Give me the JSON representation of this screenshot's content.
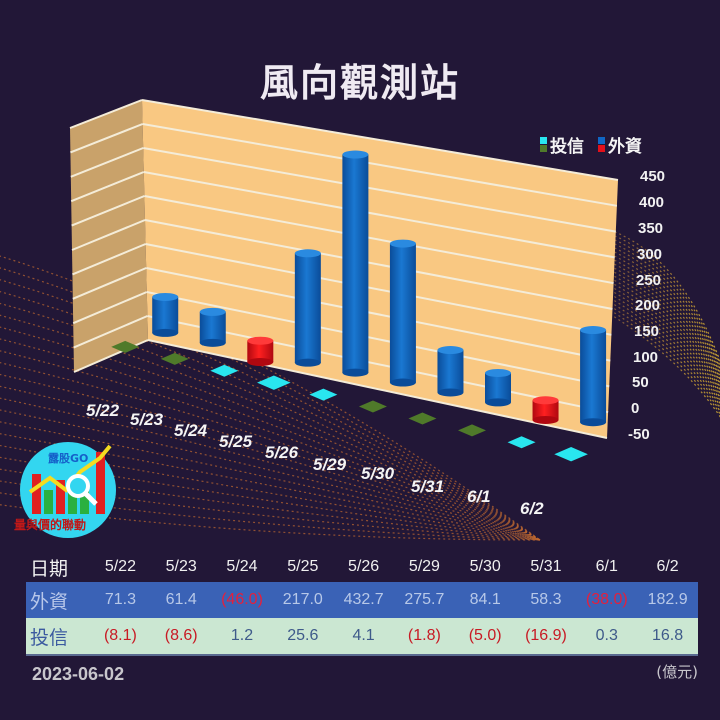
{
  "title": "風向觀測站",
  "legend": {
    "items": [
      {
        "label": "投信",
        "pos_color": "#29e6ef",
        "neg_color": "#4f7a2a"
      },
      {
        "label": "外資",
        "pos_color": "#1066c4",
        "neg_color": "#e3101a"
      }
    ]
  },
  "y_axis": {
    "ticks": [
      "450",
      "400",
      "350",
      "300",
      "250",
      "200",
      "150",
      "100",
      "50",
      "0",
      "-50"
    ]
  },
  "x_labels": [
    "5/22",
    "5/23",
    "5/24",
    "5/25",
    "5/26",
    "5/29",
    "5/30",
    "5/31",
    "6/1",
    "6/2"
  ],
  "logo": {
    "text": "露股GO",
    "caption": "量與價的聯動"
  },
  "table": {
    "header_label": "日期",
    "dates": [
      "5/22",
      "5/23",
      "5/24",
      "5/25",
      "5/26",
      "5/29",
      "5/30",
      "5/31",
      "6/1",
      "6/2"
    ],
    "foreign": {
      "label": "外資",
      "values": [
        "71.3",
        "61.4",
        "(46.0)",
        "217.0",
        "432.7",
        "275.7",
        "84.1",
        "58.3",
        "(38.0)",
        "182.9"
      ]
    },
    "trust": {
      "label": "投信",
      "values": [
        "(8.1)",
        "(8.6)",
        "1.2",
        "25.6",
        "4.1",
        "(1.8)",
        "(5.0)",
        "(16.9)",
        "0.3",
        "16.8"
      ]
    }
  },
  "footer": {
    "date": "2023-06-02",
    "unit": "(億元)"
  },
  "colors": {
    "background": "#221737",
    "wall": "#f9c882",
    "side_wall": "#c9a26a",
    "foreign_pos": "#1066c4",
    "foreign_neg": "#e3101a",
    "trust_pos": "#29e6ef",
    "trust_neg": "#4f7a2a",
    "row_foreign": "#3a62b6",
    "row_trust": "#cbe7d2"
  },
  "chart_data": {
    "type": "bar",
    "title": "風向觀測站",
    "categories": [
      "5/22",
      "5/23",
      "5/24",
      "5/25",
      "5/26",
      "5/29",
      "5/30",
      "5/31",
      "6/1",
      "6/2"
    ],
    "series": [
      {
        "name": "外資",
        "values": [
          71.3,
          61.4,
          -46.0,
          217.0,
          432.7,
          275.7,
          84.1,
          58.3,
          -38.0,
          182.9
        ]
      },
      {
        "name": "投信",
        "values": [
          -8.1,
          -8.6,
          1.2,
          25.6,
          4.1,
          -1.8,
          -5.0,
          -16.9,
          0.3,
          16.8
        ]
      }
    ],
    "xlabel": "日期",
    "ylabel": "億元",
    "ylim": [
      -50,
      450
    ],
    "yticks": [
      -50,
      0,
      50,
      100,
      150,
      200,
      250,
      300,
      350,
      400,
      450
    ],
    "grid": true,
    "legend_position": "top-right",
    "render": "3d-cylinder"
  }
}
